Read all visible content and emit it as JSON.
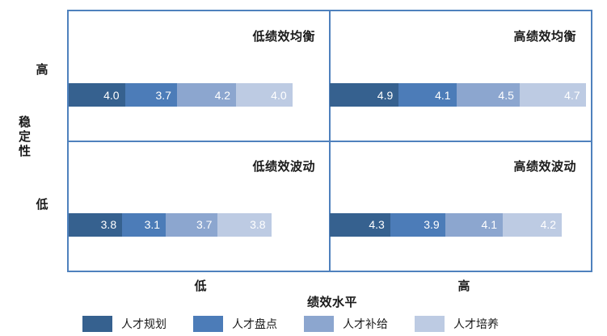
{
  "chart_data": {
    "type": "bar",
    "orientation": "horizontal-stacked",
    "layout": "2x2-quadrant-matrix",
    "xlabel": "绩效水平",
    "ylabel": "稳定性",
    "x_ticks": [
      "低",
      "高"
    ],
    "y_ticks": [
      "高",
      "低"
    ],
    "series_names": [
      "人才规划",
      "人才盘点",
      "人才补给",
      "人才培养"
    ],
    "series_colors": [
      "#36618F",
      "#4C7CB8",
      "#8CA6CF",
      "#BDCBE3"
    ],
    "value_range_hint": [
      0,
      5
    ],
    "legend_position": "bottom",
    "quadrants": [
      {
        "position": "top-left",
        "x": "低",
        "y": "高",
        "title": "低绩效均衡",
        "values": [
          4.0,
          3.7,
          4.2,
          4.0
        ]
      },
      {
        "position": "top-right",
        "x": "高",
        "y": "高",
        "title": "高绩效均衡",
        "values": [
          4.9,
          4.1,
          4.5,
          4.7
        ]
      },
      {
        "position": "bottom-left",
        "x": "低",
        "y": "低",
        "title": "低绩效波动",
        "values": [
          3.8,
          3.1,
          3.7,
          3.8
        ]
      },
      {
        "position": "bottom-right",
        "x": "高",
        "y": "低",
        "title": "高绩效波动",
        "values": [
          4.3,
          3.9,
          4.1,
          4.2
        ]
      }
    ]
  },
  "colors": {
    "frame": "#4F81BD",
    "text": "#1A1A1A",
    "value_label": "#FFFFFF"
  }
}
